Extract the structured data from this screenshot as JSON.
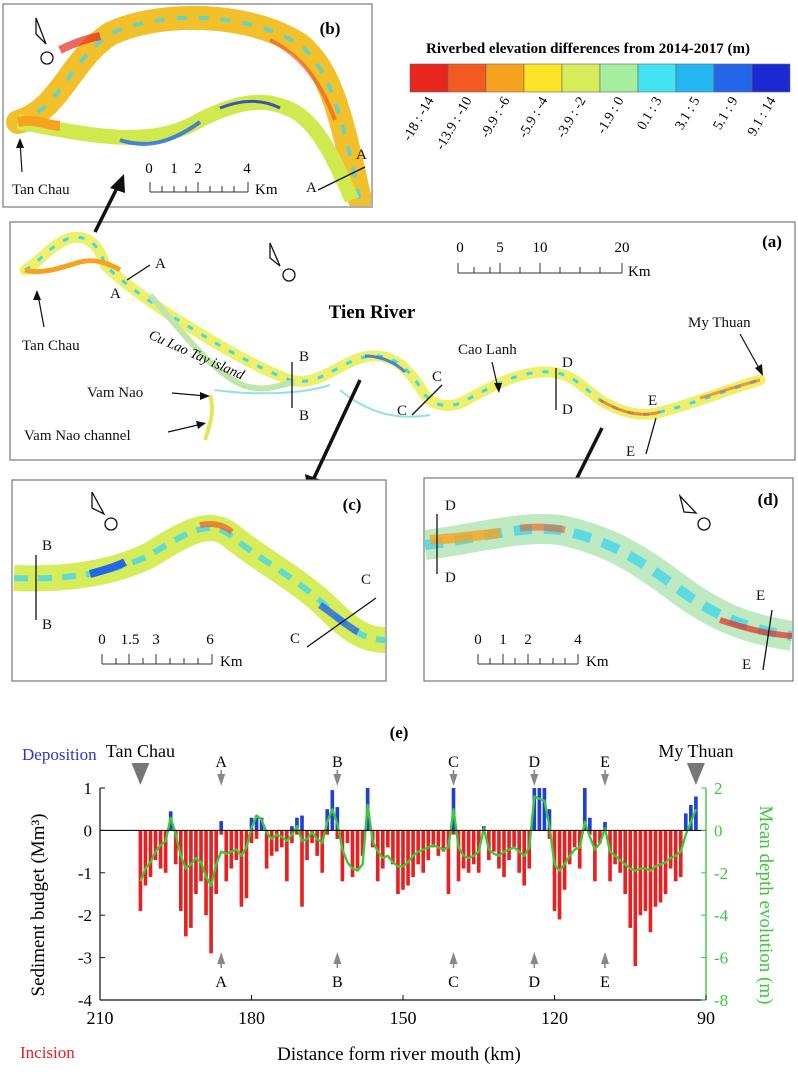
{
  "legend": {
    "title": "Riverbed elevation differences from 2014-2017 (m)",
    "classes": [
      {
        "label": "-18 : -14",
        "color": "#e8261e"
      },
      {
        "label": "-13.9 : -10",
        "color": "#f25a22"
      },
      {
        "label": "-9.9 : -6",
        "color": "#f7a21e"
      },
      {
        "label": "-5.9 : -4",
        "color": "#fde326"
      },
      {
        "label": "-3.9 : -2",
        "color": "#d6ec5a"
      },
      {
        "label": "-1.9 : 0",
        "color": "#a5eea0"
      },
      {
        "label": "0.1 : 3",
        "color": "#41e4f0"
      },
      {
        "label": "3.1 : 5",
        "color": "#23b6f0"
      },
      {
        "label": "5.1 : 9",
        "color": "#2366e8"
      },
      {
        "label": "9.1 : 14",
        "color": "#1a2ad0"
      }
    ]
  },
  "panels": {
    "a": {
      "tag": "(a)",
      "scale_ticks": [
        "0",
        "5",
        "10",
        "20"
      ],
      "scale_unit": "Km",
      "labels": {
        "tien_river": "Tien River",
        "tan_chau": "Tan Chau",
        "cu_lao": "Cu Lao Tay island",
        "vam_nao": "Vam Nao",
        "vam_nao_channel": "Vam Nao channel",
        "cao_lanh": "Cao Lanh",
        "my_thuan": "My Thuan"
      }
    },
    "b": {
      "tag": "(b)",
      "scale_ticks": [
        "0",
        "1",
        "2",
        "4"
      ],
      "scale_unit": "Km",
      "tan_chau": "Tan Chau"
    },
    "c": {
      "tag": "(c)",
      "scale_ticks": [
        "0",
        "1.5",
        "3",
        "6"
      ],
      "scale_unit": "Km"
    },
    "d": {
      "tag": "(d)",
      "scale_ticks": [
        "0",
        "1",
        "2",
        "4"
      ],
      "scale_unit": "Km"
    },
    "e": {
      "tag": "(e)"
    }
  },
  "section_letters": {
    "A": "A",
    "B": "B",
    "C": "C",
    "D": "D",
    "E": "E"
  },
  "chart_data": {
    "type": "bar",
    "xlabel": "Distance form river mouth (km)",
    "ylabel": "Sediment budget (Mm³)",
    "y2label": "Mean depth evolution (m)",
    "xlim": [
      210,
      90
    ],
    "ylim": [
      -4,
      1
    ],
    "y2lim": [
      -8,
      2
    ],
    "xticks": [
      210,
      180,
      150,
      120,
      90
    ],
    "yticks": [
      1,
      0,
      -1,
      -2,
      -3,
      -4
    ],
    "y2ticks": [
      2,
      0,
      -2,
      -4,
      -6,
      -8
    ],
    "legend_deposition": "Deposition",
    "legend_incision": "Incision",
    "location_markers": [
      {
        "label": "Tan Chau",
        "x": 202
      },
      {
        "label": "My Thuan",
        "x": 92
      }
    ],
    "section_markers": [
      {
        "label": "A",
        "x": 186
      },
      {
        "label": "B",
        "x": 163
      },
      {
        "label": "C",
        "x": 140
      },
      {
        "label": "D",
        "x": 124
      },
      {
        "label": "E",
        "x": 110
      }
    ],
    "x": [
      202,
      201,
      200,
      199,
      198,
      197,
      196,
      195,
      194,
      193,
      192,
      191,
      190,
      189,
      188,
      187,
      186,
      185,
      184,
      183,
      182,
      181,
      180,
      179,
      178,
      177,
      176,
      175,
      174,
      173,
      172,
      171,
      170,
      169,
      168,
      167,
      166,
      165,
      164,
      163,
      162,
      161,
      160,
      159,
      158,
      157,
      156,
      155,
      154,
      153,
      152,
      151,
      150,
      149,
      148,
      147,
      146,
      145,
      144,
      143,
      142,
      141,
      140,
      139,
      138,
      137,
      136,
      135,
      134,
      133,
      132,
      131,
      130,
      129,
      128,
      127,
      126,
      125,
      124,
      123,
      122,
      121,
      120,
      119,
      118,
      117,
      116,
      115,
      114,
      113,
      112,
      111,
      110,
      109,
      108,
      107,
      106,
      105,
      104,
      103,
      102,
      101,
      100,
      99,
      98,
      97,
      96,
      95,
      94,
      93,
      92
    ],
    "series": [
      {
        "name": "Deposition",
        "color": "#1f3fd6",
        "values": [
          0,
          0,
          0,
          0,
          0,
          0,
          0.45,
          0,
          0,
          0,
          0,
          0,
          0,
          0,
          0,
          0,
          0.22,
          0,
          0,
          0,
          0,
          0,
          0.3,
          0.35,
          0.3,
          0,
          0,
          0,
          0,
          0,
          0.1,
          0.3,
          0.35,
          0,
          0,
          0,
          0,
          0.5,
          0.95,
          0.55,
          0,
          0,
          0,
          0,
          0,
          1.0,
          0,
          0,
          0,
          0,
          0,
          0,
          0,
          0,
          0,
          0,
          0,
          0,
          0,
          0,
          0,
          0,
          1.0,
          0,
          0,
          0,
          0,
          0,
          0.1,
          0,
          0,
          0,
          0,
          0,
          0,
          0,
          0,
          0,
          1.0,
          1.0,
          1.0,
          0.5,
          0,
          0,
          0,
          0,
          0,
          0,
          1.0,
          0.3,
          0,
          0,
          0.2,
          0,
          0,
          0,
          0,
          0,
          0,
          0,
          0,
          0,
          0,
          0,
          0,
          0,
          0,
          0,
          0.4,
          0.6,
          0.8
        ]
      },
      {
        "name": "Incision",
        "color": "#e82020",
        "values": [
          -1.9,
          -1.3,
          -1.1,
          -0.7,
          -0.9,
          -1.0,
          0,
          -0.8,
          -1.9,
          -2.5,
          -2.3,
          -1.5,
          -1.2,
          -2.0,
          -2.9,
          -1.5,
          -0.1,
          -1.2,
          -0.9,
          -0.7,
          -1.8,
          -1.6,
          -0.3,
          -0.2,
          0,
          -0.9,
          -0.6,
          -0.5,
          -0.4,
          -1.2,
          -0.3,
          -0.1,
          -1.8,
          -0.7,
          -0.3,
          -0.6,
          -1.0,
          -0.1,
          0,
          -0.2,
          -1.2,
          -0.3,
          -1.1,
          -0.9,
          -0.6,
          0,
          -0.4,
          -1.2,
          -0.9,
          -0.4,
          -0.8,
          -1.5,
          -1.4,
          -1.3,
          -1.1,
          -0.8,
          -1.0,
          -0.7,
          -0.4,
          -0.6,
          -0.5,
          -1.5,
          -0.1,
          -1.2,
          -0.9,
          -1.0,
          -0.8,
          -1.0,
          0,
          -0.7,
          -0.5,
          -0.9,
          -1.1,
          -0.7,
          -0.4,
          -1.0,
          -1.3,
          -0.9,
          0,
          0,
          0,
          -0.2,
          -1.9,
          -2.1,
          -1.4,
          -0.8,
          -0.4,
          -0.9,
          0,
          -0.1,
          -1.2,
          -0.3,
          0,
          -1.2,
          -0.8,
          -1.0,
          -1.5,
          -2.3,
          -3.2,
          -2.0,
          -1.9,
          -2.4,
          -1.8,
          -1.7,
          -1.5,
          -0.9,
          -1.2,
          -1.1,
          0,
          0,
          0
        ]
      },
      {
        "name": "Mean depth evolution",
        "color": "#3fc63c",
        "values": [
          -2.4,
          -1.8,
          -1.5,
          -1.0,
          -0.7,
          -0.5,
          0.6,
          -0.2,
          -1.2,
          -1.8,
          -1.6,
          -1.3,
          -1.5,
          -2.2,
          -2.6,
          -1.6,
          -1.0,
          -1.1,
          -1.0,
          -0.9,
          -1.2,
          -0.8,
          0.1,
          0.7,
          0.5,
          -0.1,
          -0.4,
          -0.2,
          -0.3,
          -0.5,
          -0.2,
          0.2,
          -0.5,
          -0.4,
          -0.1,
          -0.4,
          -0.6,
          0.4,
          1.0,
          0.3,
          -0.9,
          -1.5,
          -1.8,
          -1.9,
          -1.6,
          1.2,
          -0.5,
          -1.0,
          -1.3,
          -1.2,
          -1.5,
          -1.7,
          -1.7,
          -1.5,
          -1.2,
          -1.0,
          -0.9,
          -0.8,
          -0.7,
          -0.8,
          -0.9,
          -0.8,
          1.0,
          -0.8,
          -1.2,
          -1.3,
          -1.2,
          -1.0,
          0.1,
          -0.9,
          -1.1,
          -1.2,
          -1.0,
          -0.9,
          -0.8,
          -1.0,
          -1.2,
          -0.8,
          1.6,
          1.5,
          1.4,
          0.2,
          -1.6,
          -1.9,
          -1.6,
          -1.2,
          -0.9,
          -0.8,
          0.4,
          -0.3,
          -0.9,
          -0.6,
          0.1,
          -1.0,
          -1.2,
          -1.4,
          -1.6,
          -1.8,
          -1.9,
          -1.8,
          -1.8,
          -1.9,
          -1.7,
          -1.6,
          -1.5,
          -1.3,
          -1.2,
          -1.0,
          -0.2,
          0.4,
          1.0
        ]
      }
    ]
  }
}
